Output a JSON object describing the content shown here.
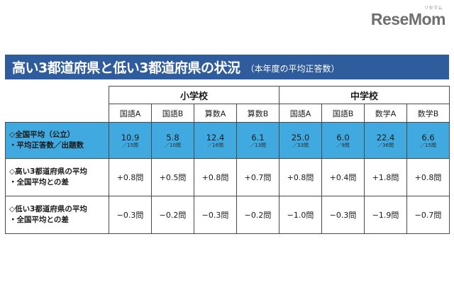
{
  "logo": {
    "small": "リセマム",
    "brand": "ReseMom"
  },
  "title": {
    "main": "高い3都道府県と低い3都道府県の状況",
    "sub": "（本年度の平均正答数）"
  },
  "groups": [
    {
      "label": "小学校"
    },
    {
      "label": "中学校"
    }
  ],
  "subjects": [
    {
      "label": "国語A"
    },
    {
      "label": "国語B"
    },
    {
      "label": "算数A"
    },
    {
      "label": "算数B"
    },
    {
      "label": "国語A"
    },
    {
      "label": "国語B"
    },
    {
      "label": "数学A"
    },
    {
      "label": "数学B"
    }
  ],
  "rows": {
    "national": {
      "label1": "◇全国平均（公立）",
      "label2": "・平均正答数／出題数",
      "cells": [
        {
          "value": "10.9",
          "count": "／15問"
        },
        {
          "value": "5.8",
          "count": "／10問"
        },
        {
          "value": "12.4",
          "count": "／16問"
        },
        {
          "value": "6.1",
          "count": "／13問"
        },
        {
          "value": "25.0",
          "count": "／33問"
        },
        {
          "value": "6.0",
          "count": "／9問"
        },
        {
          "value": "22.4",
          "count": "／36問"
        },
        {
          "value": "6.6",
          "count": "／15問"
        }
      ]
    },
    "high": {
      "label1": "◇高い3都道府県の平均",
      "label2": "・全国平均との差",
      "cells": [
        "+0.8問",
        "+0.5問",
        "+0.8問",
        "+0.7問",
        "+0.8問",
        "+0.4問",
        "+1.8問",
        "+0.8問"
      ]
    },
    "low": {
      "label1": "◇低い3都道府県の平均",
      "label2": "・全国平均との差",
      "cells": [
        "−0.3問",
        "−0.2問",
        "−0.3問",
        "−0.2問",
        "−1.0問",
        "−0.3問",
        "−1.9問",
        "−0.7問"
      ]
    }
  },
  "colors": {
    "title_bg": "#2f5c9d",
    "highlight_row": "#3fa9e0"
  }
}
